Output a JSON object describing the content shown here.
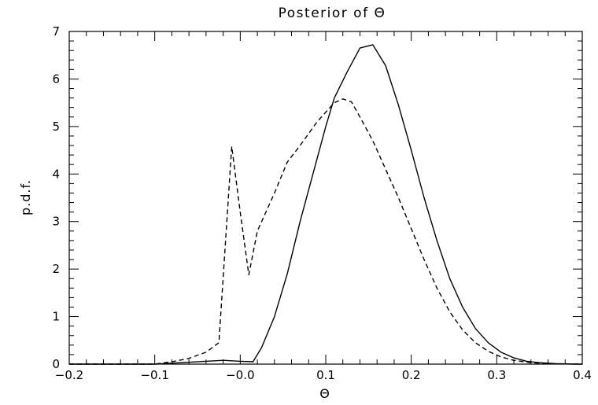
{
  "chart_data": {
    "type": "line",
    "title": "Posterior of Θ",
    "xlabel": "Θ",
    "ylabel": "p.d.f.",
    "xlim": [
      -0.2,
      0.4
    ],
    "ylim": [
      0,
      7
    ],
    "grid": false,
    "x_ticks": [
      -0.2,
      -0.1,
      0.0,
      0.1,
      0.2,
      0.3,
      0.4
    ],
    "x_tick_labels": [
      "−0.2",
      "−0.1",
      "−0.0",
      "0.1",
      "0.2",
      "0.3",
      "0.4"
    ],
    "y_ticks": [
      0,
      1,
      2,
      3,
      4,
      5,
      6,
      7
    ],
    "y_tick_labels": [
      "0",
      "1",
      "2",
      "3",
      "4",
      "5",
      "6",
      "7"
    ],
    "series": [
      {
        "style": "solid",
        "color": "#000000",
        "x": [
          -0.2,
          -0.1,
          -0.07,
          -0.04,
          -0.02,
          0.0,
          0.015,
          0.025,
          0.04,
          0.055,
          0.07,
          0.085,
          0.1,
          0.11,
          0.125,
          0.14,
          0.155,
          0.17,
          0.185,
          0.2,
          0.215,
          0.23,
          0.245,
          0.26,
          0.275,
          0.29,
          0.305,
          0.32,
          0.335,
          0.35,
          0.37,
          0.39,
          0.4
        ],
        "y": [
          0.0,
          0.0,
          0.03,
          0.06,
          0.08,
          0.06,
          0.05,
          0.35,
          1.0,
          1.9,
          3.0,
          4.0,
          5.0,
          5.6,
          6.15,
          6.65,
          6.72,
          6.28,
          5.45,
          4.5,
          3.5,
          2.6,
          1.8,
          1.2,
          0.75,
          0.45,
          0.25,
          0.13,
          0.06,
          0.03,
          0.01,
          0.0,
          0.0
        ]
      },
      {
        "style": "dashed",
        "color": "#000000",
        "x": [
          -0.2,
          -0.1,
          -0.08,
          -0.06,
          -0.04,
          -0.025,
          -0.01,
          0.0,
          0.01,
          0.02,
          0.04,
          0.055,
          0.07,
          0.09,
          0.11,
          0.12,
          0.13,
          0.14,
          0.155,
          0.17,
          0.185,
          0.2,
          0.215,
          0.23,
          0.245,
          0.26,
          0.275,
          0.29,
          0.305,
          0.32,
          0.34,
          0.36,
          0.4
        ],
        "y": [
          0.0,
          0.0,
          0.05,
          0.12,
          0.25,
          0.45,
          4.58,
          3.2,
          1.88,
          2.8,
          3.6,
          4.25,
          4.6,
          5.1,
          5.5,
          5.58,
          5.52,
          5.2,
          4.7,
          4.1,
          3.5,
          2.85,
          2.2,
          1.6,
          1.1,
          0.72,
          0.45,
          0.27,
          0.15,
          0.08,
          0.03,
          0.01,
          0.0
        ]
      }
    ]
  }
}
